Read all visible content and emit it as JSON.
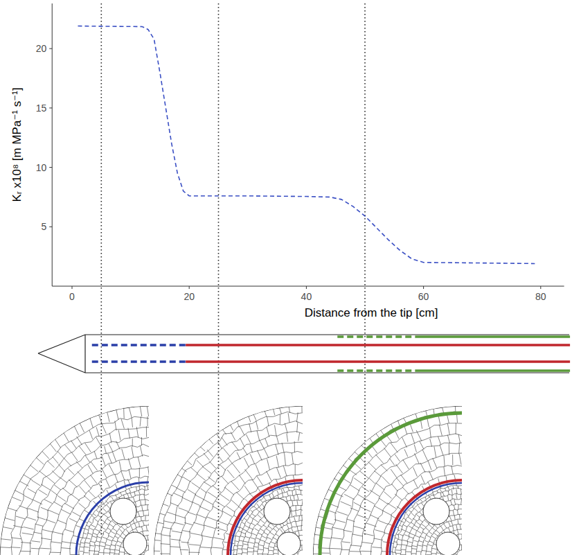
{
  "chart_data": {
    "type": "line",
    "x_label": "Distance from the tip [cm]",
    "y_label": "Kᵣ x10⁸ [m MPa⁻¹ s⁻¹]",
    "x": [
      1,
      12,
      13,
      14,
      15,
      16,
      17,
      18,
      19,
      20,
      30,
      40,
      44,
      46,
      48,
      50,
      52,
      54,
      56,
      58,
      60,
      70,
      79
    ],
    "values": [
      21.9,
      21.85,
      21.6,
      20.8,
      18.0,
      15.0,
      12.0,
      9.5,
      8.0,
      7.6,
      7.6,
      7.55,
      7.5,
      7.3,
      6.7,
      5.9,
      4.9,
      3.9,
      3.0,
      2.3,
      2.0,
      1.95,
      1.9
    ],
    "color": "#3a4fc4",
    "line_style": "dashed",
    "xlim": [
      -3.4,
      84
    ],
    "ylim": [
      0,
      23.8
    ],
    "xticks": [
      0,
      20,
      40,
      60,
      80
    ],
    "yticks": [
      5,
      10,
      15,
      20
    ],
    "grid": false,
    "reference_lines": [
      5,
      25,
      50
    ],
    "tissue_zones": [
      {
        "color": "#2b3fa8",
        "line_style": "dashed",
        "start": 3.4,
        "end": 19.4
      },
      {
        "color": "#c0272d",
        "line_style": "solid",
        "start": 19.4,
        "end": 85
      },
      {
        "color": "#5a9a3a",
        "line_style": "dashed",
        "start": 45.3,
        "end": 58.6
      },
      {
        "color": "#5a9a3a",
        "line_style": "solid",
        "start": 58.6,
        "end": 85
      }
    ]
  }
}
